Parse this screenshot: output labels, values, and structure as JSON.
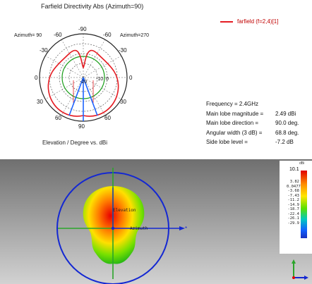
{
  "farfield": {
    "title": "Farfield Directivity Abs (Azimuth=90)",
    "legend": "farfield (f=2,4)[1]",
    "angle_labels": {
      "top": "-90",
      "upper_left": "-60",
      "upper_right": "-60",
      "left_az": "Azimuth= 90",
      "right_az": "Azimuth=270",
      "mid_left": "-30",
      "mid_right": "-30",
      "left_zero": "0",
      "right_zero": "0",
      "lower_left": "30",
      "lower_right": "30",
      "bottom_left": "60",
      "bottom_mid": "90",
      "bottom_right": "60",
      "c_20": "-20",
      "c_10": "-10",
      "c_0": "0"
    },
    "xlabel": "Elevation / Degree vs. dBi",
    "properties": [
      {
        "label": "Frequency = 2.4GHz",
        "value": ""
      },
      {
        "label": "Main lobe magnitude =",
        "value": "2.49 dBi"
      },
      {
        "label": "Main lobe direction =",
        "value": "90.0 deg."
      },
      {
        "label": "Angular width (3 dB) =",
        "value": "68.8 deg."
      },
      {
        "label": "Side lobe level =",
        "value": "-7.2 dB"
      }
    ],
    "colors": {
      "pattern": "#e51c23",
      "green_circle": "#1a9e1a",
      "main_lobe": "#1e64ff"
    }
  },
  "view3d": {
    "labels": {
      "elevation": "Elevation",
      "azimuth": "Azimuth"
    },
    "colors": {
      "background_top": "#6f6f6f",
      "ring": "#1428d2",
      "axes": "#2aa52a"
    },
    "color_scale": {
      "unit": "dBi",
      "max": "10.1",
      "ticks": [
        "3.82",
        "0.0477",
        "-3.68",
        "-7.43",
        "-11.2",
        "-14.9",
        "-18.7",
        "-22.4",
        "-26.1",
        "-29.9"
      ]
    },
    "icons": [
      "axis-triad-icon"
    ]
  }
}
